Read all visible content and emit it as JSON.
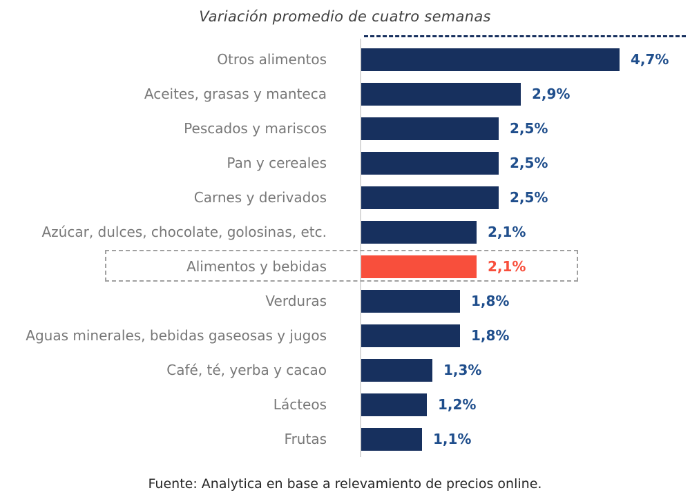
{
  "title": "Variación promedio de cuatro semanas",
  "footer": "Fuente: Analytica en base a relevamiento de precios online.",
  "chart_data": {
    "type": "bar",
    "orientation": "horizontal",
    "title": "Variación promedio de cuatro semanas",
    "categories": [
      "Otros alimentos",
      "Aceites, grasas y manteca",
      "Pescados y mariscos",
      "Pan y cereales",
      "Carnes y derivados",
      "Azúcar, dulces, chocolate, golosinas, etc.",
      "Alimentos y bebidas",
      "Verduras",
      "Aguas minerales, bebidas gaseosas y jugos",
      "Café, té, yerba y cacao",
      "Lácteos",
      "Frutas"
    ],
    "values": [
      4.7,
      2.9,
      2.5,
      2.5,
      2.5,
      2.1,
      2.1,
      1.8,
      1.8,
      1.3,
      1.2,
      1.1
    ],
    "value_labels": [
      "4,7%",
      "2,9%",
      "2,5%",
      "2,5%",
      "2,5%",
      "2,1%",
      "2,1%",
      "1,8%",
      "1,8%",
      "1,3%",
      "1,2%",
      "1,1%"
    ],
    "unit": "%",
    "xlim": [
      0,
      5
    ],
    "grid": false,
    "legend": false,
    "highlighted_category": "Alimentos y bebidas",
    "highlighted_index": 6,
    "colors": {
      "bar": "#17305E",
      "highlight_bar": "#F84F3C",
      "value_label": "#1F4E8C",
      "highlight_value_label": "#F84F3C",
      "category_label": "#777777",
      "axis_line": "#D9D9D9",
      "highlight_box_border": "#A0A0A0",
      "top_dashed_line": "#17305E"
    },
    "source": "Fuente: Analytica en base a relevamiento de precios online."
  }
}
